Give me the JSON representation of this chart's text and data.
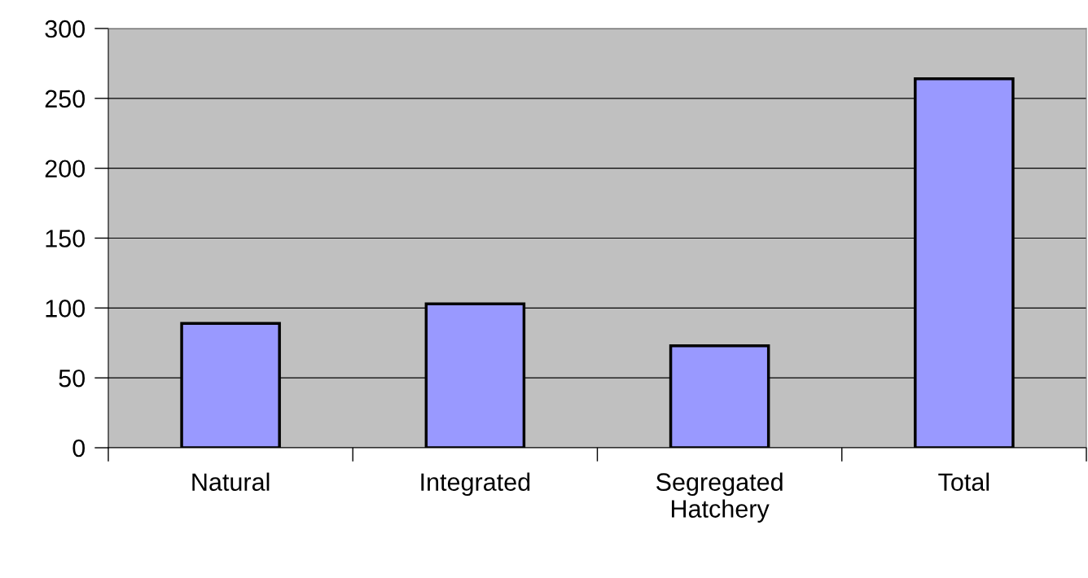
{
  "chart_data": {
    "type": "bar",
    "categories": [
      "Natural",
      "Integrated",
      "Segregated\nHatchery",
      "Total"
    ],
    "values": [
      89,
      103,
      73,
      264
    ],
    "color": "#9999ff",
    "ylim": [
      0,
      300
    ],
    "yticks": [
      0,
      50,
      100,
      150,
      200,
      250,
      300
    ],
    "grid": "y"
  }
}
